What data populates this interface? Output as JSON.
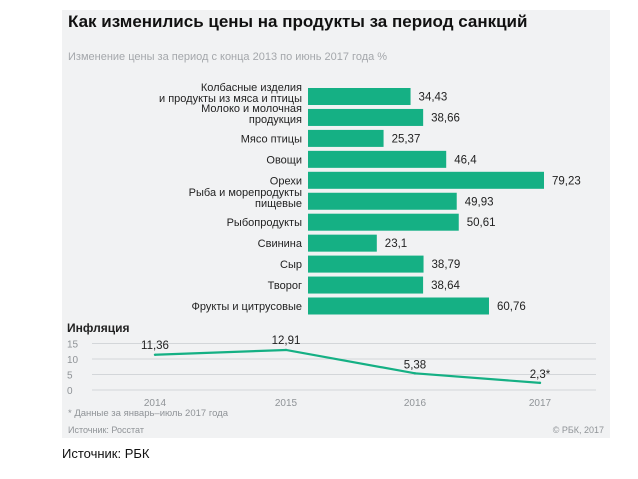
{
  "title": "Как изменились цены на продукты за период санкций",
  "subtitle": "Изменение цены за период с конца 2013 по июнь 2017 года %",
  "colors": {
    "bar": "#15b084",
    "line": "#15b084",
    "card": "#f1f2f3",
    "text": "#222222",
    "muted": "#a4a7ab"
  },
  "chart_data": [
    {
      "type": "bar",
      "orientation": "horizontal",
      "title": "Как изменились цены на продукты за период санкций",
      "subtitle": "Изменение цены за период с конца 2013 по июнь 2017 года %",
      "categories": [
        [
          "Колбасные изделия",
          "и продукты из мяса и птицы"
        ],
        [
          "Молоко и молочная",
          "продукция"
        ],
        [
          "Мясо птицы"
        ],
        [
          "Овощи"
        ],
        [
          "Орехи"
        ],
        [
          "Рыба и морепродукты",
          "пищевые"
        ],
        [
          "Рыбопродукты"
        ],
        [
          "Свинина"
        ],
        [
          "Сыр"
        ],
        [
          "Творог"
        ],
        [
          "Фрукты и цитрусовые"
        ]
      ],
      "values": [
        34.43,
        38.66,
        25.37,
        46.4,
        79.23,
        49.93,
        50.61,
        23.1,
        38.79,
        38.64,
        60.76
      ],
      "labels": [
        "34,43",
        "38,66",
        "25,37",
        "46,4",
        "79,23",
        "49,93",
        "50,61",
        "23,1",
        "38,79",
        "38,64",
        "60,76"
      ],
      "xlim": [
        0,
        80
      ]
    },
    {
      "type": "line",
      "title": "Инфляция",
      "x": [
        "2014",
        "2015",
        "2016",
        "2017"
      ],
      "values": [
        11.36,
        12.91,
        5.38,
        2.3
      ],
      "labels": [
        "11,36",
        "12,91",
        "5,38",
        "2,3*"
      ],
      "yticks": [
        0,
        5,
        10,
        15
      ],
      "ylim": [
        0,
        15
      ],
      "grid": true
    }
  ],
  "footnote": "* Данные за январь–июль 2017 года",
  "source_left": "Источник: Росстат",
  "source_right": "© РБК, 2017",
  "caption": "Источник: РБК"
}
